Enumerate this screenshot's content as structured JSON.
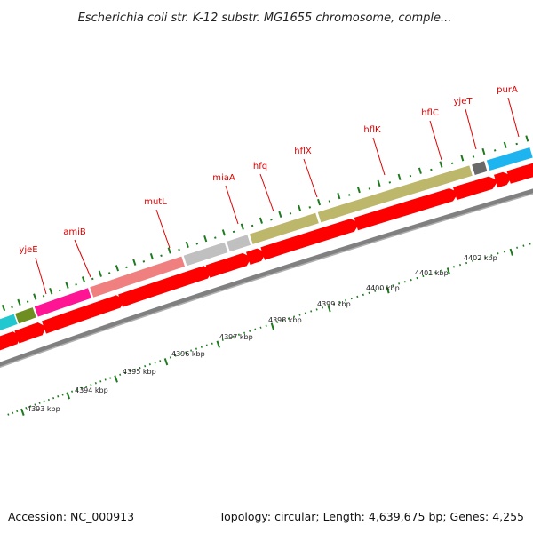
{
  "title": "Escherichia coli str. K-12 substr. MG1655 chromosome, comple...",
  "footer": {
    "accession": "Accession: NC_000913",
    "summary": "Topology: circular; Length: 4,639,675 bp; Genes: 4,255"
  },
  "colors": {
    "cds_arrow": "#ff0000",
    "backbone": "#808080",
    "tick": "#1e7a1e",
    "gene_label": "#e00000"
  },
  "genes": [
    {
      "name": "yjeE",
      "color": "#22c8d0"
    },
    {
      "name": "amiB",
      "color": "#6e8e22"
    },
    {
      "name": "mutL",
      "color": "#ff1493"
    },
    {
      "name": "miaA",
      "color": "#f08080"
    },
    {
      "name": "hfq",
      "color": "#c0c0c0"
    },
    {
      "name": "hflX",
      "color": "#c0c0c0"
    },
    {
      "name": "hflK",
      "color": "#bdb76b"
    },
    {
      "name": "hflC",
      "color": "#bdb76b"
    },
    {
      "name": "yjeT",
      "color": "#696969"
    },
    {
      "name": "purA",
      "color": "#1eb4f0"
    }
  ],
  "scale_labels": [
    "4393 kbp",
    "4394 kbp",
    "4395 kbp",
    "4396 kbp",
    "4397 kbp",
    "4398 kbp",
    "4399 kbp",
    "4400 kbp",
    "4401 kbp",
    "4402 kbp"
  ]
}
